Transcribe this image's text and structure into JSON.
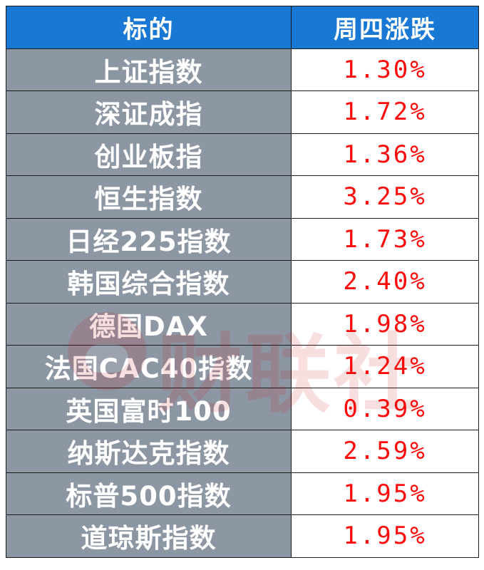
{
  "header": {
    "col_name": "标的",
    "col_change": "周四涨跌"
  },
  "rows": [
    {
      "name": "上证指数",
      "change": "1.30%"
    },
    {
      "name": "深证成指",
      "change": "1.72%"
    },
    {
      "name": "创业板指",
      "change": "1.36%"
    },
    {
      "name": "恒生指数",
      "change": "3.25%"
    },
    {
      "name": "日经225指数",
      "change": "1.73%"
    },
    {
      "name": "韩国综合指数",
      "change": "2.40%"
    },
    {
      "name": "德国DAX",
      "change": "1.98%"
    },
    {
      "name": "法国CAC40指数",
      "change": "1.24%"
    },
    {
      "name": "英国富时100",
      "change": "0.39%"
    },
    {
      "name": "纳斯达克指数",
      "change": "2.59%"
    },
    {
      "name": "标普500指数",
      "change": "1.95%"
    },
    {
      "name": "道琼斯指数",
      "change": "1.95%"
    }
  ],
  "watermark": {
    "text": "财联社"
  },
  "colors": {
    "header_bg": "#1878d4",
    "name_bg": "#8d96a3",
    "value_text": "#ff0a0a"
  }
}
